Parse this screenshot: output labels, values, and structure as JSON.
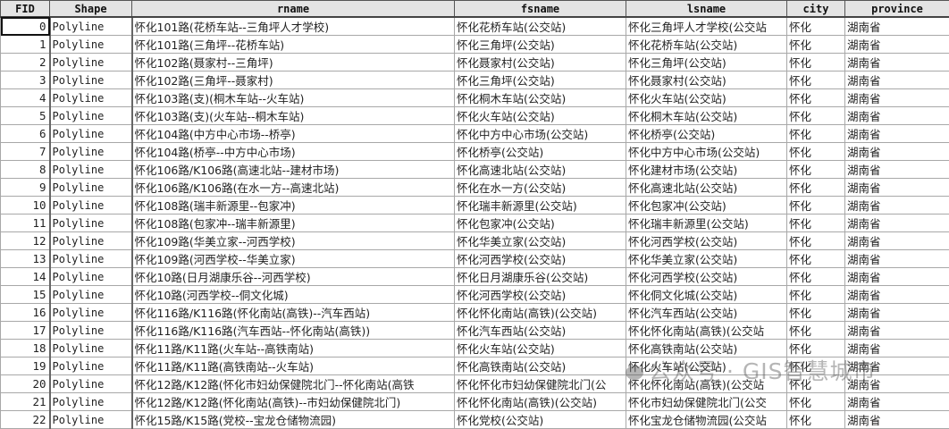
{
  "columns": [
    "FID",
    "Shape",
    "rname",
    "fsname",
    "lsname",
    "city",
    "province"
  ],
  "rows": [
    [
      "0",
      "Polyline",
      "怀化101路(花桥车站--三角坪人才学校)",
      "怀化花桥车站(公交站)",
      "怀化三角坪人才学校(公交站",
      "怀化",
      "湖南省"
    ],
    [
      "1",
      "Polyline",
      "怀化101路(三角坪--花桥车站)",
      "怀化三角坪(公交站)",
      "怀化花桥车站(公交站)",
      "怀化",
      "湖南省"
    ],
    [
      "2",
      "Polyline",
      "怀化102路(聂家村--三角坪)",
      "怀化聂家村(公交站)",
      "怀化三角坪(公交站)",
      "怀化",
      "湖南省"
    ],
    [
      "3",
      "Polyline",
      "怀化102路(三角坪--聂家村)",
      "怀化三角坪(公交站)",
      "怀化聂家村(公交站)",
      "怀化",
      "湖南省"
    ],
    [
      "4",
      "Polyline",
      "怀化103路(支)(桐木车站--火车站)",
      "怀化桐木车站(公交站)",
      "怀化火车站(公交站)",
      "怀化",
      "湖南省"
    ],
    [
      "5",
      "Polyline",
      "怀化103路(支)(火车站--桐木车站)",
      "怀化火车站(公交站)",
      "怀化桐木车站(公交站)",
      "怀化",
      "湖南省"
    ],
    [
      "6",
      "Polyline",
      "怀化104路(中方中心市场--桥亭)",
      "怀化中方中心市场(公交站)",
      "怀化桥亭(公交站)",
      "怀化",
      "湖南省"
    ],
    [
      "7",
      "Polyline",
      "怀化104路(桥亭--中方中心市场)",
      "怀化桥亭(公交站)",
      "怀化中方中心市场(公交站)",
      "怀化",
      "湖南省"
    ],
    [
      "8",
      "Polyline",
      "怀化106路/K106路(高速北站--建材市场)",
      "怀化高速北站(公交站)",
      "怀化建材市场(公交站)",
      "怀化",
      "湖南省"
    ],
    [
      "9",
      "Polyline",
      "怀化106路/K106路(在水一方--高速北站)",
      "怀化在水一方(公交站)",
      "怀化高速北站(公交站)",
      "怀化",
      "湖南省"
    ],
    [
      "10",
      "Polyline",
      "怀化108路(瑞丰新源里--包家冲)",
      "怀化瑞丰新源里(公交站)",
      "怀化包家冲(公交站)",
      "怀化",
      "湖南省"
    ],
    [
      "11",
      "Polyline",
      "怀化108路(包家冲--瑞丰新源里)",
      "怀化包家冲(公交站)",
      "怀化瑞丰新源里(公交站)",
      "怀化",
      "湖南省"
    ],
    [
      "12",
      "Polyline",
      "怀化109路(华美立家--河西学校)",
      "怀化华美立家(公交站)",
      "怀化河西学校(公交站)",
      "怀化",
      "湖南省"
    ],
    [
      "13",
      "Polyline",
      "怀化109路(河西学校--华美立家)",
      "怀化河西学校(公交站)",
      "怀化华美立家(公交站)",
      "怀化",
      "湖南省"
    ],
    [
      "14",
      "Polyline",
      "怀化10路(日月湖康乐谷--河西学校)",
      "怀化日月湖康乐谷(公交站)",
      "怀化河西学校(公交站)",
      "怀化",
      "湖南省"
    ],
    [
      "15",
      "Polyline",
      "怀化10路(河西学校--侗文化城)",
      "怀化河西学校(公交站)",
      "怀化侗文化城(公交站)",
      "怀化",
      "湖南省"
    ],
    [
      "16",
      "Polyline",
      "怀化116路/K116路(怀化南站(高铁)--汽车西站)",
      "怀化怀化南站(高铁)(公交站)",
      "怀化汽车西站(公交站)",
      "怀化",
      "湖南省"
    ],
    [
      "17",
      "Polyline",
      "怀化116路/K116路(汽车西站--怀化南站(高铁))",
      "怀化汽车西站(公交站)",
      "怀化怀化南站(高铁)(公交站",
      "怀化",
      "湖南省"
    ],
    [
      "18",
      "Polyline",
      "怀化11路/K11路(火车站--高铁南站)",
      "怀化火车站(公交站)",
      "怀化高铁南站(公交站)",
      "怀化",
      "湖南省"
    ],
    [
      "19",
      "Polyline",
      "怀化11路/K11路(高铁南站--火车站)",
      "怀化高铁南站(公交站)",
      "怀化火车站(公交站)",
      "怀化",
      "湖南省"
    ],
    [
      "20",
      "Polyline",
      "怀化12路/K12路(怀化市妇幼保健院北门--怀化南站(高铁",
      "怀化怀化市妇幼保健院北门(公",
      "怀化怀化南站(高铁)(公交站",
      "怀化",
      "湖南省"
    ],
    [
      "21",
      "Polyline",
      "怀化12路/K12路(怀化南站(高铁)--市妇幼保健院北门)",
      "怀化怀化南站(高铁)(公交站)",
      "怀化市妇幼保健院北门(公交",
      "怀化",
      "湖南省"
    ],
    [
      "22",
      "Polyline",
      "怀化15路/K15路(党校--宝龙仓储物流园)",
      "怀化党校(公交站)",
      "怀化宝龙仓储物流园(公交站",
      "怀化",
      "湖南省"
    ]
  ],
  "watermark": "公众号 · GIS智慧城市"
}
